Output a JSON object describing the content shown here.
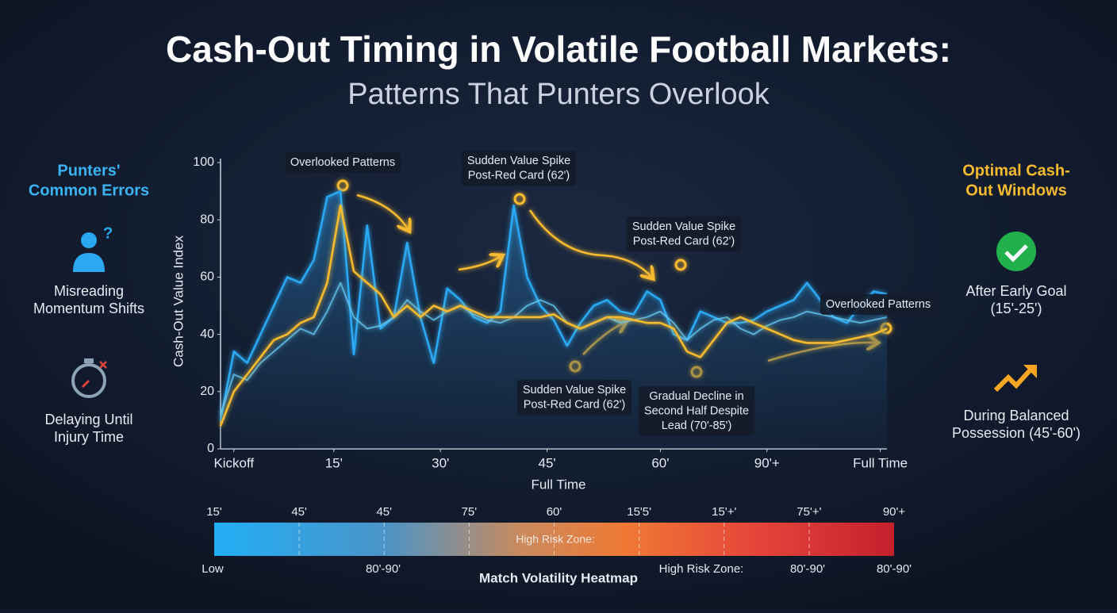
{
  "header": {
    "title": "Cash-Out Timing in Volatile Football Markets:",
    "subtitle": "Patterns That Punters Overlook"
  },
  "left_panel": {
    "title": [
      "Punters'",
      "Common Errors"
    ],
    "items": [
      [
        "Misreading",
        "Momentum Shifts"
      ],
      [
        "Delaying Until",
        "Injury Time"
      ]
    ]
  },
  "right_panel": {
    "title": [
      "Optimal Cash-",
      "Out Windows"
    ],
    "items": [
      [
        "After Early Goal",
        "(15'-25')"
      ],
      [
        "During Balanced",
        "Possession (45'-60')"
      ]
    ]
  },
  "chart_data": {
    "type": "line",
    "x_label": "Full Time",
    "y_label": "Cash-Out Value Index",
    "x": [
      0,
      2,
      4,
      6,
      8,
      10,
      12,
      14,
      16,
      18,
      20,
      22,
      24,
      26,
      28,
      30,
      32,
      34,
      36,
      38,
      40,
      42,
      44,
      46,
      48,
      50,
      52,
      54,
      56,
      58,
      60,
      62,
      64,
      66,
      68,
      70,
      72,
      74,
      76,
      78,
      80,
      82,
      84,
      86,
      88,
      90,
      92,
      94,
      96,
      98,
      100
    ],
    "xlim": [
      0,
      100
    ],
    "ylim": [
      0,
      100
    ],
    "yticks": [
      0,
      20,
      40,
      60,
      80,
      100
    ],
    "xticks": [
      {
        "value": 2,
        "label": "Kickoff"
      },
      {
        "value": 17,
        "label": "15'"
      },
      {
        "value": 33,
        "label": "30'"
      },
      {
        "value": 49,
        "label": "45'"
      },
      {
        "value": 66,
        "label": "60'"
      },
      {
        "value": 82,
        "label": "90'+"
      },
      {
        "value": 99,
        "label": "Full Time"
      }
    ],
    "series": [
      {
        "color": "#2aa9f2",
        "values": [
          10,
          34,
          30,
          40,
          50,
          60,
          58,
          66,
          88,
          90,
          33,
          78,
          42,
          46,
          72,
          46,
          30,
          56,
          52,
          46,
          44,
          48,
          85,
          60,
          50,
          45,
          36,
          44,
          50,
          52,
          48,
          47,
          55,
          52,
          40,
          38,
          48,
          46,
          44,
          44,
          45,
          48,
          50,
          52,
          58,
          52,
          46,
          44,
          50,
          55,
          54
        ]
      },
      {
        "color": "#63c4ee",
        "values": [
          12,
          26,
          24,
          30,
          34,
          38,
          42,
          40,
          48,
          58,
          46,
          42,
          43,
          46,
          52,
          48,
          45,
          48,
          50,
          47,
          45,
          44,
          46,
          50,
          52,
          50,
          44,
          42,
          44,
          46,
          44,
          45,
          46,
          48,
          44,
          38,
          42,
          45,
          46,
          42,
          40,
          43,
          45,
          46,
          48,
          47,
          46,
          45,
          44,
          45,
          46
        ]
      },
      {
        "color": "#f6ba2f",
        "values": [
          8,
          20,
          26,
          32,
          38,
          40,
          44,
          46,
          58,
          85,
          62,
          58,
          54,
          46,
          50,
          46,
          50,
          48,
          50,
          48,
          46,
          46,
          46,
          46,
          46,
          47,
          44,
          42,
          44,
          46,
          46,
          45,
          44,
          44,
          42,
          34,
          32,
          38,
          44,
          46,
          44,
          42,
          40,
          38,
          37,
          37,
          37,
          38,
          39,
          40,
          42
        ]
      }
    ],
    "annotations": [
      [
        "Overlooked Patterns"
      ],
      [
        "Sudden Value Spike",
        "Post-Red Card (62')"
      ],
      [
        "Sudden Value Spike",
        "Post-Red Card (62')"
      ],
      [
        "Sudden Value Spike",
        "Post-Red Card (62')"
      ],
      [
        "Gradual Decline in",
        "Second Half Despite",
        "Lead (70'-85')"
      ],
      [
        "Overlooked Patterns"
      ]
    ]
  },
  "heatmap": {
    "title": "Match Volatility Heatmap",
    "top_labels": [
      "15'",
      "45'",
      "45'",
      "75'",
      "60'",
      "15'5'",
      "15'+'",
      "75'+'",
      "90'+"
    ],
    "center_label": "High Risk Zone:",
    "bottom_labels": [
      "Low",
      "80'-90'",
      "High Risk Zone:",
      "80'-90'",
      "80'-90'"
    ]
  }
}
